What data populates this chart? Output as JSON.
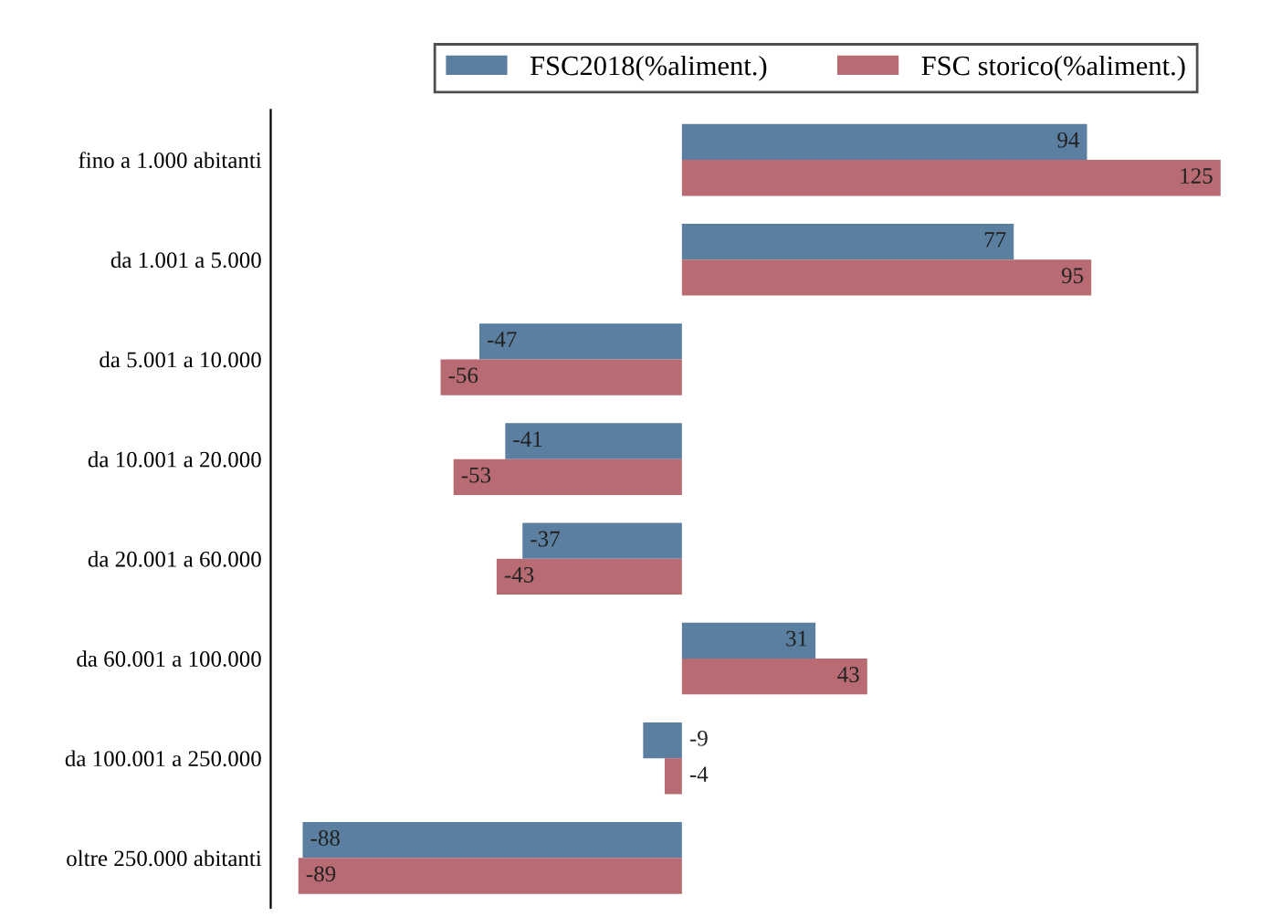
{
  "chart_data": {
    "type": "bar",
    "orientation": "horizontal",
    "data_labels": true,
    "legend": "top",
    "grid": false,
    "categories": [
      "fino a 1.000 abitanti",
      "da 1.001 a 5.000",
      "da 5.001 a 10.000",
      "da 10.001 a 20.000",
      "da 20.001 a 60.000",
      "da 60.001 a 100.000",
      "da 100.001 a 250.000",
      "oltre 250.000 abitanti"
    ],
    "series": [
      {
        "name": "FSC2018(%aliment.)",
        "color": "#5a7fa0",
        "values": [
          94,
          77,
          -47,
          -41,
          -37,
          31,
          -9,
          -88
        ]
      },
      {
        "name": "FSC storico(%aliment.)",
        "color": "#b86b72",
        "values": [
          125,
          95,
          -56,
          -53,
          -43,
          43,
          -4,
          -89
        ]
      }
    ]
  }
}
